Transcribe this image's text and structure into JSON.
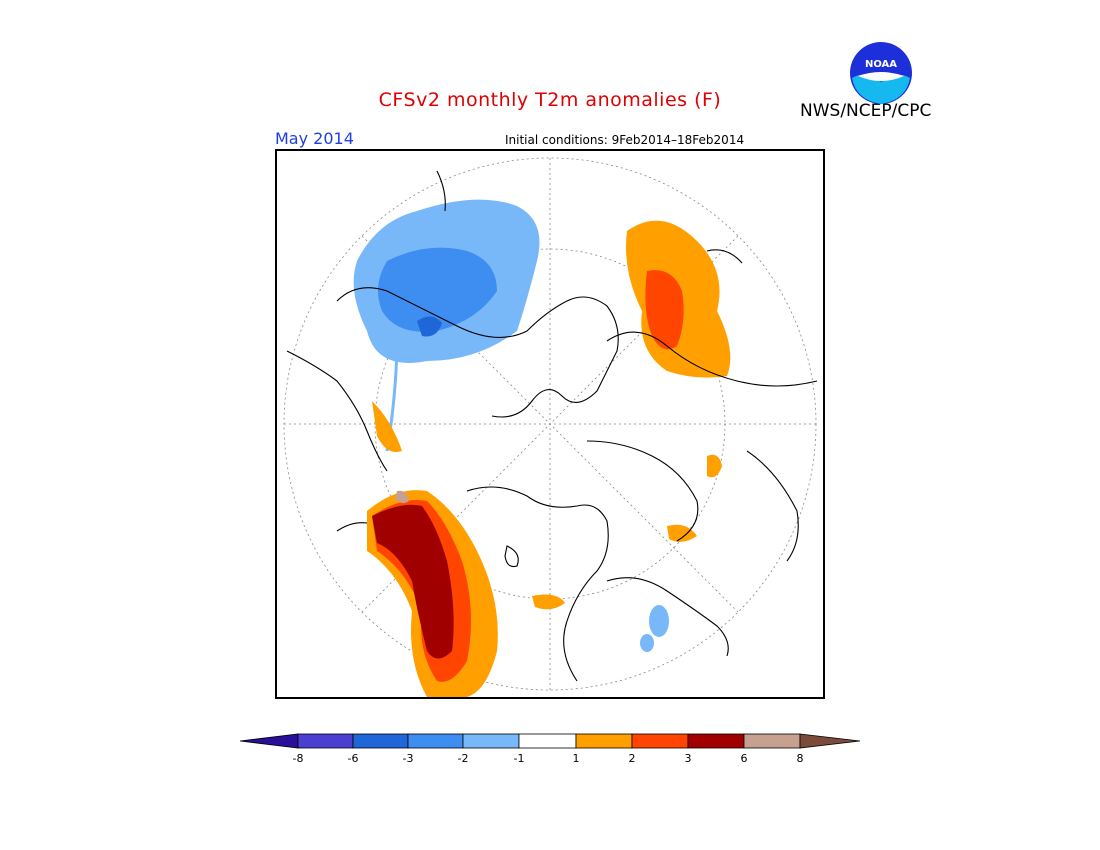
{
  "header": {
    "title": "CFSv2 monthly T2m anomalies (F)",
    "agency": "NWS/NCEP/CPC",
    "logo_text": "NOAA",
    "valid_month": "May 2014",
    "initial_conditions": "Initial conditions: 9Feb2014–18Feb2014"
  },
  "map": {
    "projection": "north polar stereographic",
    "variable": "2m temperature anomaly",
    "units": "F"
  },
  "colorbar": {
    "tick_labels": [
      "-8",
      "-6",
      "-3",
      "-2",
      "-1",
      "1",
      "2",
      "3",
      "6",
      "8"
    ],
    "bins": [
      {
        "color": "#2a0f9a"
      },
      {
        "color": "#4a3fd0"
      },
      {
        "color": "#1f66d8"
      },
      {
        "color": "#3d8ef0"
      },
      {
        "color": "#78b8f8"
      },
      {
        "color": "#ffffff"
      },
      {
        "color": "#ffa000"
      },
      {
        "color": "#ff4500"
      },
      {
        "color": "#a00000"
      },
      {
        "color": "#c8a090"
      },
      {
        "color": "#7a4a3a"
      }
    ]
  }
}
